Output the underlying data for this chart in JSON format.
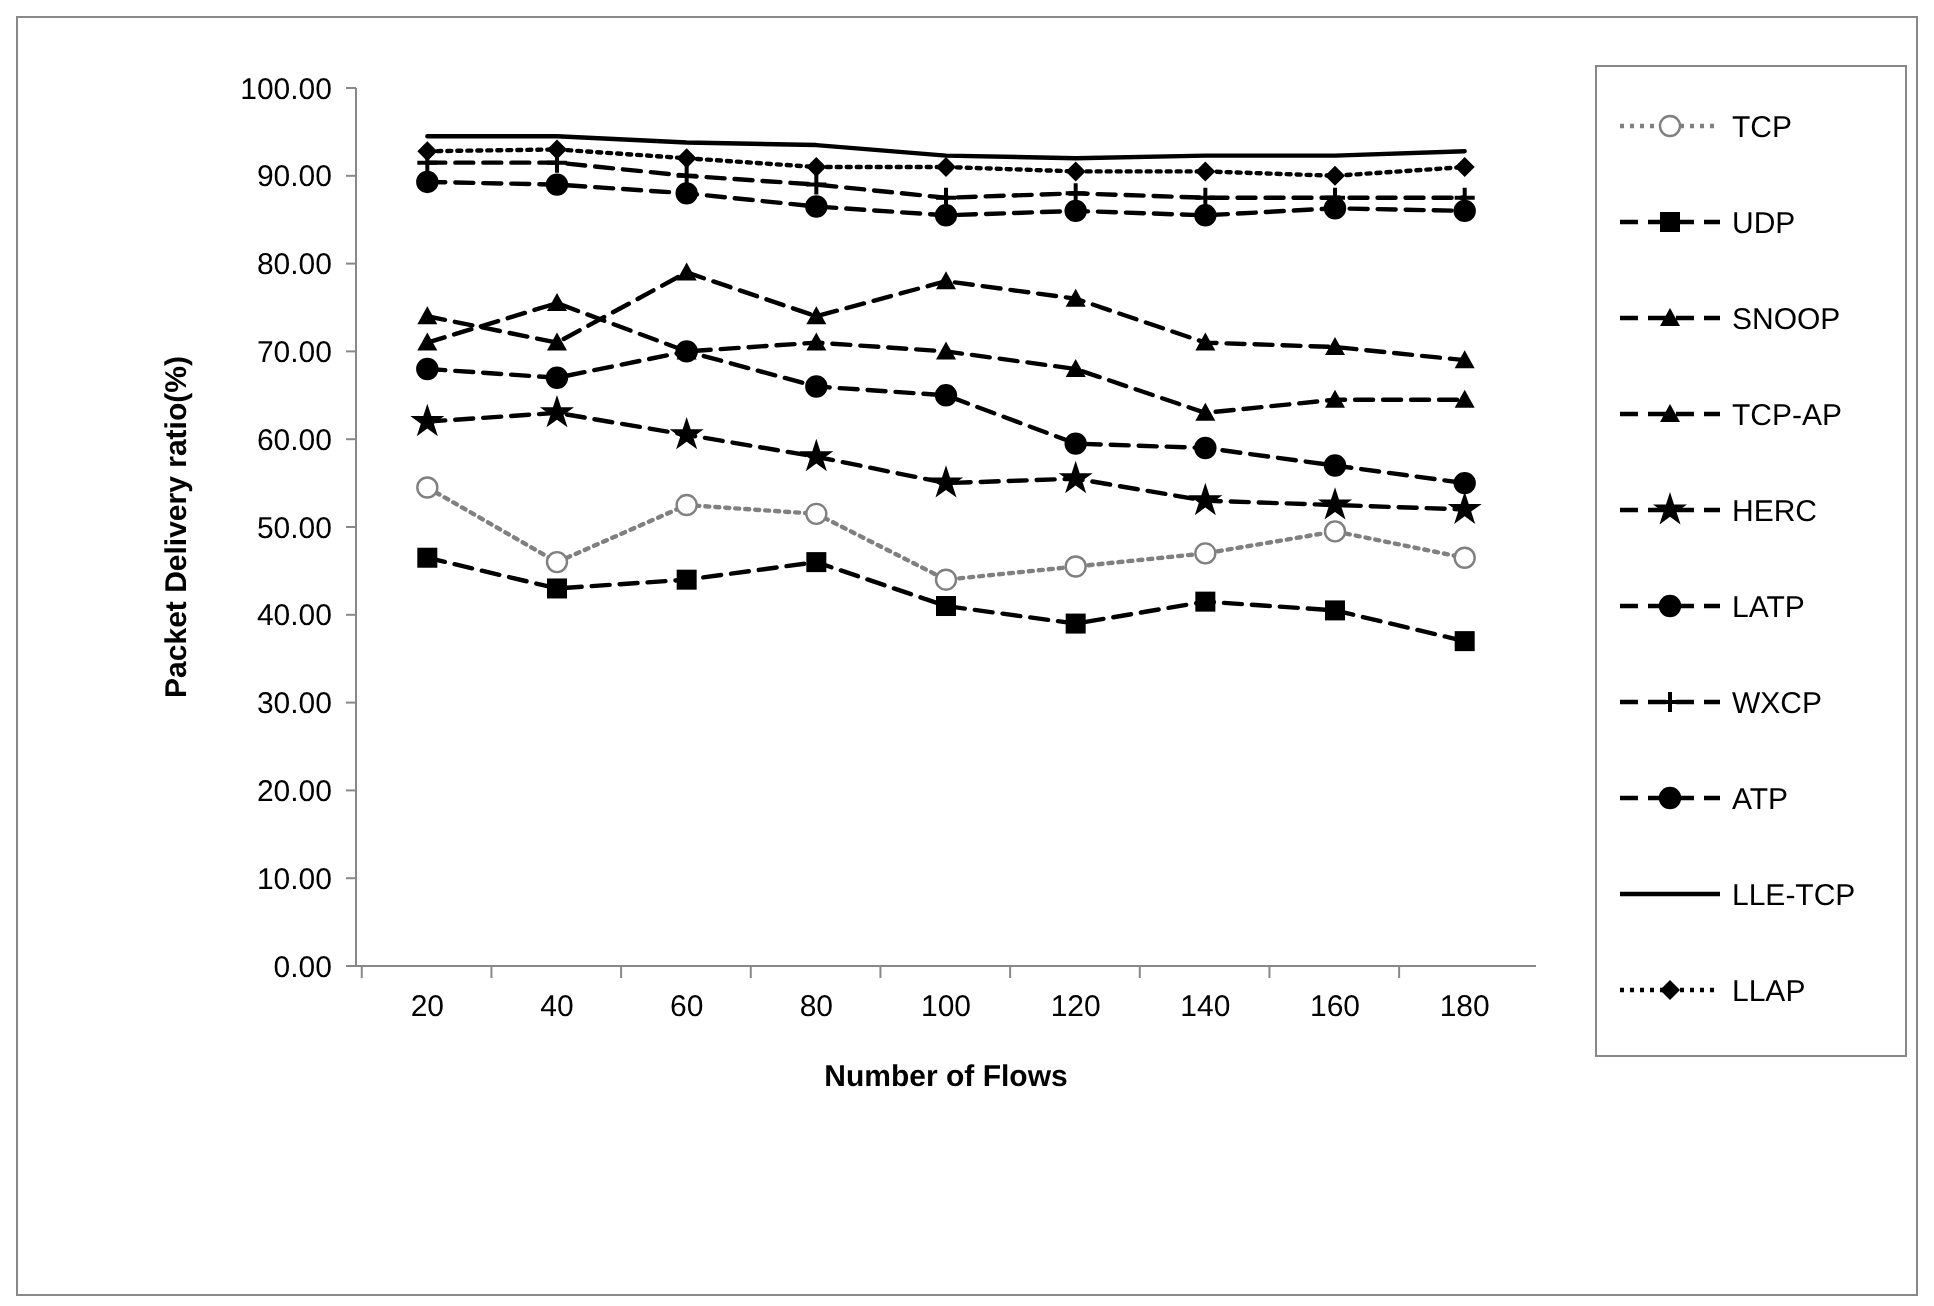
{
  "chart_data": {
    "type": "line",
    "xlabel": "Number of Flows",
    "ylabel": "Packet Delivery ratio(%)",
    "categories": [
      "20",
      "40",
      "60",
      "80",
      "100",
      "120",
      "140",
      "160",
      "180"
    ],
    "ylim": [
      0,
      100
    ],
    "yticks": [
      {
        "value": 0,
        "label": "0.00"
      },
      {
        "value": 10,
        "label": "10.00"
      },
      {
        "value": 20,
        "label": "20.00"
      },
      {
        "value": 30,
        "label": "30.00"
      },
      {
        "value": 40,
        "label": "40.00"
      },
      {
        "value": 50,
        "label": "50.00"
      },
      {
        "value": 60,
        "label": "60.00"
      },
      {
        "value": 70,
        "label": "70.00"
      },
      {
        "value": 80,
        "label": "80.00"
      },
      {
        "value": 90,
        "label": "90.00"
      },
      {
        "value": 100,
        "label": "100.00"
      }
    ],
    "legend": "right",
    "grid": false,
    "series": [
      {
        "name": "TCP",
        "color": "#808080",
        "marker": "circle",
        "line_style": "dotted",
        "values": [
          54.5,
          46,
          52.5,
          51.5,
          44,
          45.5,
          47,
          49.5,
          46.5
        ]
      },
      {
        "name": "UDP",
        "color": "#000000",
        "marker": "square",
        "line_style": "dashed",
        "values": [
          46.5,
          43,
          44,
          46,
          41,
          39,
          41.5,
          40.5,
          37
        ]
      },
      {
        "name": "SNOOP",
        "color": "#000000",
        "marker": "triangle",
        "line_style": "dashed",
        "values": [
          71,
          75.5,
          70,
          71,
          70,
          68,
          63,
          64.5,
          64.5
        ]
      },
      {
        "name": "TCP-AP",
        "color": "#000000",
        "marker": "triangle",
        "line_style": "dashed",
        "values": [
          74,
          71,
          79,
          74,
          78,
          76,
          71,
          70.5,
          69
        ]
      },
      {
        "name": "HERC",
        "color": "#000000",
        "marker": "star",
        "line_style": "dashed",
        "values": [
          62,
          63,
          60.5,
          58,
          55,
          55.5,
          53,
          52.5,
          52
        ]
      },
      {
        "name": "LATP",
        "color": "#000000",
        "marker": "circle",
        "line_style": "dashed",
        "values": [
          68,
          67,
          70,
          66,
          65,
          59.5,
          59,
          57,
          55
        ]
      },
      {
        "name": "WXCP",
        "color": "#000000",
        "marker": "cross",
        "line_style": "dashed",
        "values": [
          91.5,
          91.5,
          90,
          89,
          87.5,
          88,
          87.5,
          87.5,
          87.5
        ]
      },
      {
        "name": "ATP",
        "color": "#000000",
        "marker": "circle",
        "line_style": "dashed",
        "values": [
          89.3,
          89,
          88,
          86.5,
          85.5,
          86,
          85.5,
          86.3,
          86
        ]
      },
      {
        "name": "LLE-TCP",
        "color": "#000000",
        "marker": "none",
        "line_style": "solid",
        "values": [
          94.5,
          94.5,
          93.8,
          93.5,
          92.3,
          92,
          92.3,
          92.3,
          92.8
        ]
      },
      {
        "name": "LLAP",
        "color": "#000000",
        "marker": "diamond",
        "line_style": "dotted",
        "values": [
          92.8,
          93,
          92,
          91,
          91,
          90.5,
          90.5,
          90,
          91
        ]
      }
    ]
  }
}
